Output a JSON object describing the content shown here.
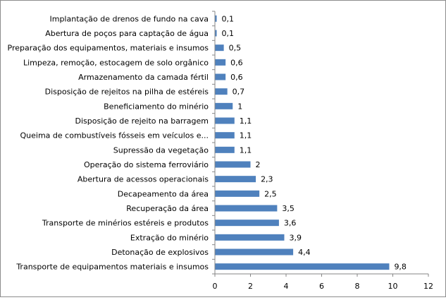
{
  "chart_data": {
    "type": "bar",
    "orientation": "horizontal",
    "categories": [
      "Implantação de drenos de fundo na cava",
      "Abertura de poços para captação de água",
      "Preparação dos equipamentos, materiais  e insumos",
      "Limpeza, remoção, estocagem de solo orgânico",
      "Armazenamento da camada fértil",
      "Disposição de rejeitos na pilha de estéreis",
      "Beneficiamento do minério",
      "Disposição de rejeito na barragem",
      "Queima de combustíveis fósseis em veículos e...",
      "Supressão da vegetação",
      "Operação do sistema ferroviário",
      "Abertura de acessos operacionais",
      "Decapeamento da área",
      "Recuperação da área",
      "Transporte de minérios estéreis e produtos",
      "Extração do minério",
      "Detonação de explosivos",
      "Transporte de equipamentos materiais  e insumos"
    ],
    "values": [
      0.1,
      0.1,
      0.5,
      0.6,
      0.6,
      0.7,
      1,
      1.1,
      1.1,
      1.1,
      2,
      2.3,
      2.5,
      3.5,
      3.6,
      3.9,
      4.4,
      9.8
    ],
    "data_labels": [
      "0,1",
      "0,1",
      "0,5",
      "0,6",
      "0,6",
      "0,7",
      "1",
      "1,1",
      "1,1",
      "1,1",
      "2",
      "2,3",
      "2,5",
      "3,5",
      "3,6",
      "3,9",
      "4,4",
      "9,8"
    ],
    "xlim": [
      0,
      12
    ],
    "x_ticks": [
      0,
      2,
      4,
      6,
      8,
      10,
      12
    ],
    "title": "",
    "xlabel": "",
    "ylabel": "",
    "grid": false,
    "legend": "none",
    "bar_color": "#4f81bd"
  }
}
